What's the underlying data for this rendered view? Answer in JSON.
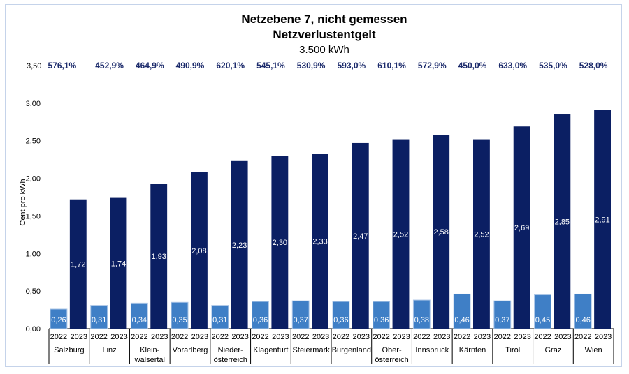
{
  "chart_data": {
    "type": "bar",
    "title": "Netzebene 7, nicht gemessen",
    "subtitle": "Netzverlustentgelt",
    "subtitle2": "3.500 kWh",
    "ylabel": "Cent pro kWh",
    "ylim": [
      0,
      3.5
    ],
    "yticks": [
      "0,00",
      "0,50",
      "1,00",
      "1,50",
      "2,00",
      "2,50",
      "3,00",
      "3,50"
    ],
    "grid": false,
    "categories": [
      "Salzburg",
      "Linz",
      "Klein-\nwalsertal",
      "Vorarlberg",
      "Nieder-\nösterreich",
      "Klagenfurt",
      "Steiermark",
      "Burgenland",
      "Ober-\nösterreich",
      "Innsbruck",
      "Kärnten",
      "Tirol",
      "Graz",
      "Wien"
    ],
    "sub_categories": [
      "2022",
      "2023"
    ],
    "series": [
      {
        "name": "2022",
        "color": "#3f7fc6",
        "values": [
          0.26,
          0.31,
          0.34,
          0.35,
          0.31,
          0.36,
          0.37,
          0.36,
          0.36,
          0.38,
          0.46,
          0.37,
          0.45,
          0.46
        ],
        "labels": [
          "0,26",
          "0,31",
          "0,34",
          "0,35",
          "0,31",
          "0,36",
          "0,37",
          "0,36",
          "0,36",
          "0,38",
          "0,46",
          "0,37",
          "0,45",
          "0,46"
        ]
      },
      {
        "name": "2023",
        "color": "#0b1f63",
        "values": [
          1.72,
          1.74,
          1.93,
          2.08,
          2.23,
          2.3,
          2.33,
          2.47,
          2.52,
          2.58,
          2.52,
          2.69,
          2.85,
          2.91
        ],
        "labels": [
          "1,72",
          "1,74",
          "1,93",
          "2,08",
          "2,23",
          "2,30",
          "2,33",
          "2,47",
          "2,52",
          "2,58",
          "2,52",
          "2,69",
          "2,85",
          "2,91"
        ]
      }
    ],
    "change_labels": [
      "576,1%",
      "452,9%",
      "464,9%",
      "490,9%",
      "620,1%",
      "545,1%",
      "530,9%",
      "593,0%",
      "610,1%",
      "572,9%",
      "450,0%",
      "633,0%",
      "535,0%",
      "528,0%"
    ],
    "change_label_color": "#1b2a6b"
  }
}
